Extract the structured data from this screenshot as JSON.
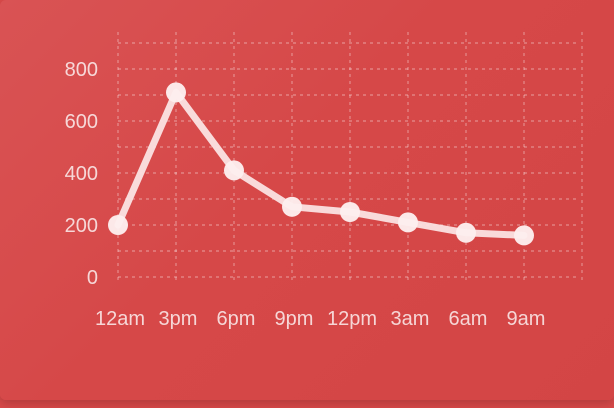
{
  "chart_data": {
    "type": "line",
    "categories": [
      "12am",
      "3pm",
      "6pm",
      "9pm",
      "12pm",
      "3am",
      "6am",
      "9am"
    ],
    "series": [
      {
        "values": [
          200,
          710,
          410,
          270,
          250,
          210,
          170,
          160
        ]
      }
    ],
    "title": "",
    "xlabel": "",
    "ylabel": "",
    "ylim": [
      0,
      800
    ],
    "yticks": [
      0,
      200,
      400,
      600,
      800
    ],
    "grid": true,
    "colors": {
      "background": "#d64a4a",
      "line": "#fbe3e3",
      "point": "#fdeeee",
      "grid": "#f1a3a3",
      "labels": "#f7c9c9"
    }
  }
}
